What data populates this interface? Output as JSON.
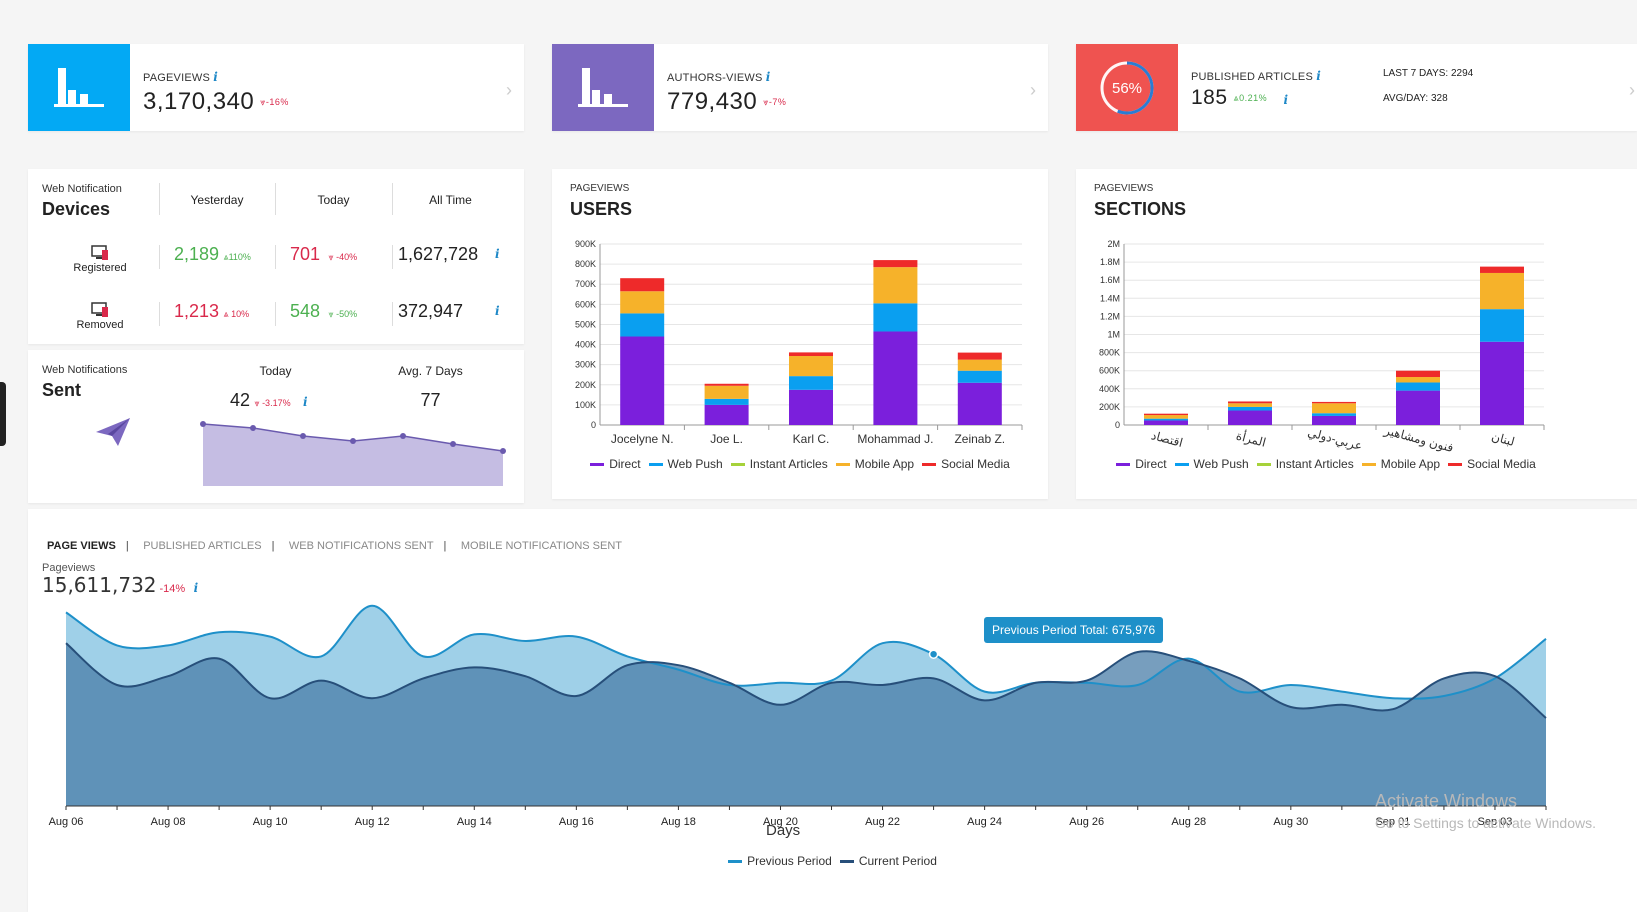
{
  "kpis": [
    {
      "label": "PAGEVIEWS",
      "value": "3,170,340",
      "change": "-16%",
      "tile_color": "#03a9f4",
      "icon": "bar-chart-icon"
    },
    {
      "label": "AUTHORS-VIEWS",
      "value": "779,430",
      "change": "-7%",
      "tile_color": "#7c68c0",
      "icon": "bar-chart-icon"
    },
    {
      "label": "PUBLISHED ARTICLES",
      "value": "185",
      "change": "0.21%",
      "tile_color": "#ef5350",
      "progress_text": "56%",
      "progress": 0.56,
      "last7_label": "LAST 7 DAYS:",
      "last7_value": "2294",
      "avg_label": "AVG/DAY:",
      "avg_value": "328"
    }
  ],
  "devices": {
    "small_title": "Web Notification",
    "title": "Devices",
    "col_yesterday": "Yesterday",
    "col_today": "Today",
    "col_all": "All Time",
    "rows": [
      {
        "label": "Registered",
        "yesterday": "2,189",
        "yesterday_change": "110%",
        "today": "701",
        "today_change": "-40%",
        "all": "1,627,728"
      },
      {
        "label": "Removed",
        "yesterday": "1,213",
        "yesterday_change": "10%",
        "today": "548",
        "today_change": "-50%",
        "all": "372,947"
      }
    ]
  },
  "sent": {
    "small_title": "Web Notifications",
    "title": "Sent",
    "today_label": "Today",
    "avg_label": "Avg. 7 Days",
    "today_value": "42",
    "today_change": "-3.17%",
    "avg_value": "77",
    "spark": [
      62,
      58,
      50,
      45,
      50,
      42,
      35
    ]
  },
  "users_chart": {
    "small_title": "PAGEVIEWS",
    "title": "USERS",
    "chart_data": {
      "type": "bar",
      "stacked": true,
      "categories": [
        "Jocelyne N.",
        "Joe L.",
        "Karl C.",
        "Mohammad J.",
        "Zeinab Z."
      ],
      "yticks": [
        "0",
        "100K",
        "200K",
        "300K",
        "400K",
        "500K",
        "600K",
        "700K",
        "800K",
        "900K"
      ],
      "ylim": [
        0,
        900000
      ],
      "series": [
        {
          "name": "Direct",
          "color": "#7b1fdc",
          "values": [
            440000,
            100000,
            175000,
            465000,
            210000
          ]
        },
        {
          "name": "Web Push",
          "color": "#0a9ff0",
          "values": [
            115000,
            30000,
            68000,
            140000,
            60000
          ]
        },
        {
          "name": "Instant Articles",
          "color": "#a6d23a",
          "values": [
            0,
            0,
            0,
            0,
            0
          ]
        },
        {
          "name": "Mobile App",
          "color": "#f6b22a",
          "values": [
            110000,
            65000,
            100000,
            180000,
            55000
          ]
        },
        {
          "name": "Social Media",
          "color": "#ee2a2a",
          "values": [
            65000,
            10000,
            18000,
            35000,
            35000
          ]
        }
      ]
    }
  },
  "sections_chart": {
    "small_title": "PAGEVIEWS",
    "title": "SECTIONS",
    "chart_data": {
      "type": "bar",
      "stacked": true,
      "categories": [
        "اقتصاد",
        "المرأة",
        "عربي-دولي",
        "فنون ومشاهير",
        "لبنان"
      ],
      "yticks": [
        "0",
        "200K",
        "400K",
        "600K",
        "800K",
        "1M",
        "1.2M",
        "1.4M",
        "1.6M",
        "1.8M",
        "2M"
      ],
      "ylim": [
        0,
        2000000
      ],
      "series": [
        {
          "name": "Direct",
          "color": "#7b1fdc",
          "values": [
            50000,
            160000,
            100000,
            380000,
            920000
          ]
        },
        {
          "name": "Web Push",
          "color": "#0a9ff0",
          "values": [
            20000,
            40000,
            30000,
            90000,
            360000
          ]
        },
        {
          "name": "Instant Articles",
          "color": "#a6d23a",
          "values": [
            0,
            0,
            0,
            0,
            0
          ]
        },
        {
          "name": "Mobile App",
          "color": "#f6b22a",
          "values": [
            40000,
            40000,
            110000,
            60000,
            400000
          ]
        },
        {
          "name": "Social Media",
          "color": "#ee2a2a",
          "values": [
            15000,
            20000,
            15000,
            70000,
            70000
          ]
        }
      ]
    }
  },
  "bottom": {
    "tabs": [
      "PAGE VIEWS",
      "PUBLISHED ARTICLES",
      "WEB NOTIFICATIONS SENT",
      "MOBILE NOTIFICATIONS SENT"
    ],
    "metric_label": "Pageviews",
    "metric_value": "15,611,732",
    "metric_change": "-14%",
    "tooltip": "Previous Period Total: 675,976",
    "xlabel": "Days",
    "chart_data": {
      "type": "area",
      "x": [
        "Aug 06",
        "Aug 07",
        "Aug 08",
        "Aug 09",
        "Aug 10",
        "Aug 11",
        "Aug 12",
        "Aug 13",
        "Aug 14",
        "Aug 15",
        "Aug 16",
        "Aug 17",
        "Aug 18",
        "Aug 19",
        "Aug 20",
        "Aug 21",
        "Aug 22",
        "Aug 23",
        "Aug 24",
        "Aug 25",
        "Aug 26",
        "Aug 27",
        "Aug 28",
        "Aug 29",
        "Aug 30",
        "Aug 31",
        "Sep 01",
        "Sep 02",
        "Sep 03",
        "Sep 04"
      ],
      "xticks": [
        "Aug 06",
        "Aug 08",
        "Aug 10",
        "Aug 12",
        "Aug 14",
        "Aug 16",
        "Aug 18",
        "Aug 20",
        "Aug 22",
        "Aug 24",
        "Aug 26",
        "Aug 28",
        "Aug 30",
        "Sep 01",
        "Sep 03"
      ],
      "series": [
        {
          "name": "Previous Period",
          "color": "#1e90c9",
          "values": [
            88,
            73,
            73,
            79,
            77,
            68,
            91,
            68,
            78,
            75,
            77,
            68,
            62,
            55,
            56,
            57,
            74,
            69,
            52,
            56,
            56,
            55,
            67,
            52,
            55,
            52,
            49,
            50,
            58,
            76
          ]
        },
        {
          "name": "Current Period",
          "color": "#274f7a",
          "values": [
            74,
            55,
            59,
            67,
            49,
            57,
            49,
            58,
            63,
            59,
            50,
            64,
            64,
            56,
            46,
            56,
            55,
            58,
            48,
            56,
            57,
            70,
            66,
            58,
            45,
            46,
            44,
            58,
            59,
            40
          ]
        }
      ]
    },
    "watermark_line1": "Activate Windows",
    "watermark_line2": "Go to Settings to activate Windows."
  }
}
